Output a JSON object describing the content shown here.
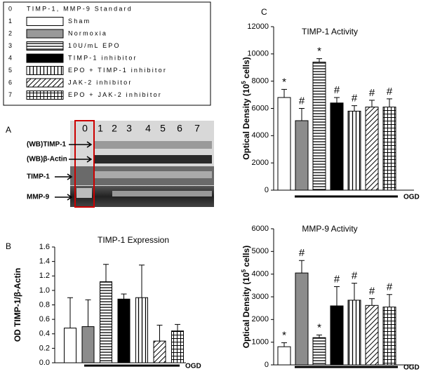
{
  "legend": {
    "entries": [
      {
        "number": "0",
        "label": "TIMP-1, MMP-9 Standard"
      },
      {
        "number": "1",
        "label": "Sham"
      },
      {
        "number": "2",
        "label": "Normoxia"
      },
      {
        "number": "3",
        "label": "10U/mL EPO"
      },
      {
        "number": "4",
        "label": "TIMP-1 inhibitor"
      },
      {
        "number": "5",
        "label": "EPO + TIMP-1 inhibitor"
      },
      {
        "number": "6",
        "label": "JAK-2 inhibitor"
      },
      {
        "number": "7",
        "label": "EPO + JAK-2 inhibitor"
      }
    ]
  },
  "blot": {
    "panel": "A",
    "lanes": [
      "0",
      "1",
      "2",
      "3",
      "4",
      "5",
      "6",
      "7"
    ],
    "rows": [
      "(WB)TIMP-1",
      "(WB)β-Actin",
      "TIMP-1",
      "MMP-9"
    ]
  },
  "chart_data": [
    {
      "type": "bar",
      "panel": "B",
      "title": "TIMP-1 Expression",
      "y_label": "OD TIMP-1/β-Actin",
      "x_label": "OGD",
      "categories": [
        null,
        null,
        null,
        null,
        null,
        null,
        null
      ],
      "values": [
        0.48,
        0.5,
        1.12,
        0.88,
        0.9,
        0.3,
        0.44
      ],
      "errors": [
        0.42,
        0.37,
        0.24,
        0.07,
        0.45,
        0.22,
        0.09
      ],
      "bar_fills": [
        "white",
        "gray",
        "horizontal",
        "black",
        "vertical",
        "diagonal",
        "grid"
      ],
      "ylim": [
        0,
        1.6
      ],
      "yticks": [
        {
          "value": 0,
          "label": "0.0"
        },
        0.2,
        0.4,
        0.6,
        0.8,
        {
          "value": 1,
          "label": "1.0"
        },
        1.2,
        1.4,
        1.6
      ]
    },
    {
      "type": "bar",
      "panel": "C",
      "title": "TIMP-1 Activity",
      "y_label": [
        "Optical Density (10",
        "5",
        " cells)"
      ],
      "x_label": "OGD",
      "categories": [
        null,
        null,
        null,
        null,
        null,
        null,
        null
      ],
      "values": [
        6800,
        5100,
        9400,
        6400,
        5800,
        6100,
        6100
      ],
      "errors": [
        600,
        900,
        250,
        400,
        400,
        500,
        600
      ],
      "annotations": [
        "*",
        "#",
        "*",
        "#",
        "#",
        "#",
        "#"
      ],
      "bar_fills": [
        "white",
        "gray",
        "horizontal",
        "black",
        "vertical",
        "diagonal",
        "grid"
      ],
      "ylim": [
        0,
        12000
      ],
      "yticks": [
        0,
        2000,
        4000,
        6000,
        8000,
        10000,
        12000
      ]
    },
    {
      "type": "bar",
      "title": "MMP-9 Activity",
      "y_label": [
        "Optical Density (10",
        "5",
        " cells)"
      ],
      "x_label": "OGD",
      "categories": [
        null,
        null,
        null,
        null,
        null,
        null,
        null
      ],
      "values": [
        800,
        4050,
        1200,
        2600,
        2850,
        2620,
        2550
      ],
      "errors": [
        180,
        550,
        120,
        850,
        750,
        300,
        550
      ],
      "annotations": [
        "*",
        "#",
        "*",
        "#",
        "#",
        "#",
        "#"
      ],
      "bar_fills": [
        "white",
        "gray",
        "horizontal",
        "black",
        "vertical",
        "diagonal",
        "grid"
      ],
      "ylim": [
        0,
        6000
      ],
      "yticks": [
        0,
        1000,
        2000,
        3000,
        4000,
        5000,
        6000
      ]
    }
  ]
}
